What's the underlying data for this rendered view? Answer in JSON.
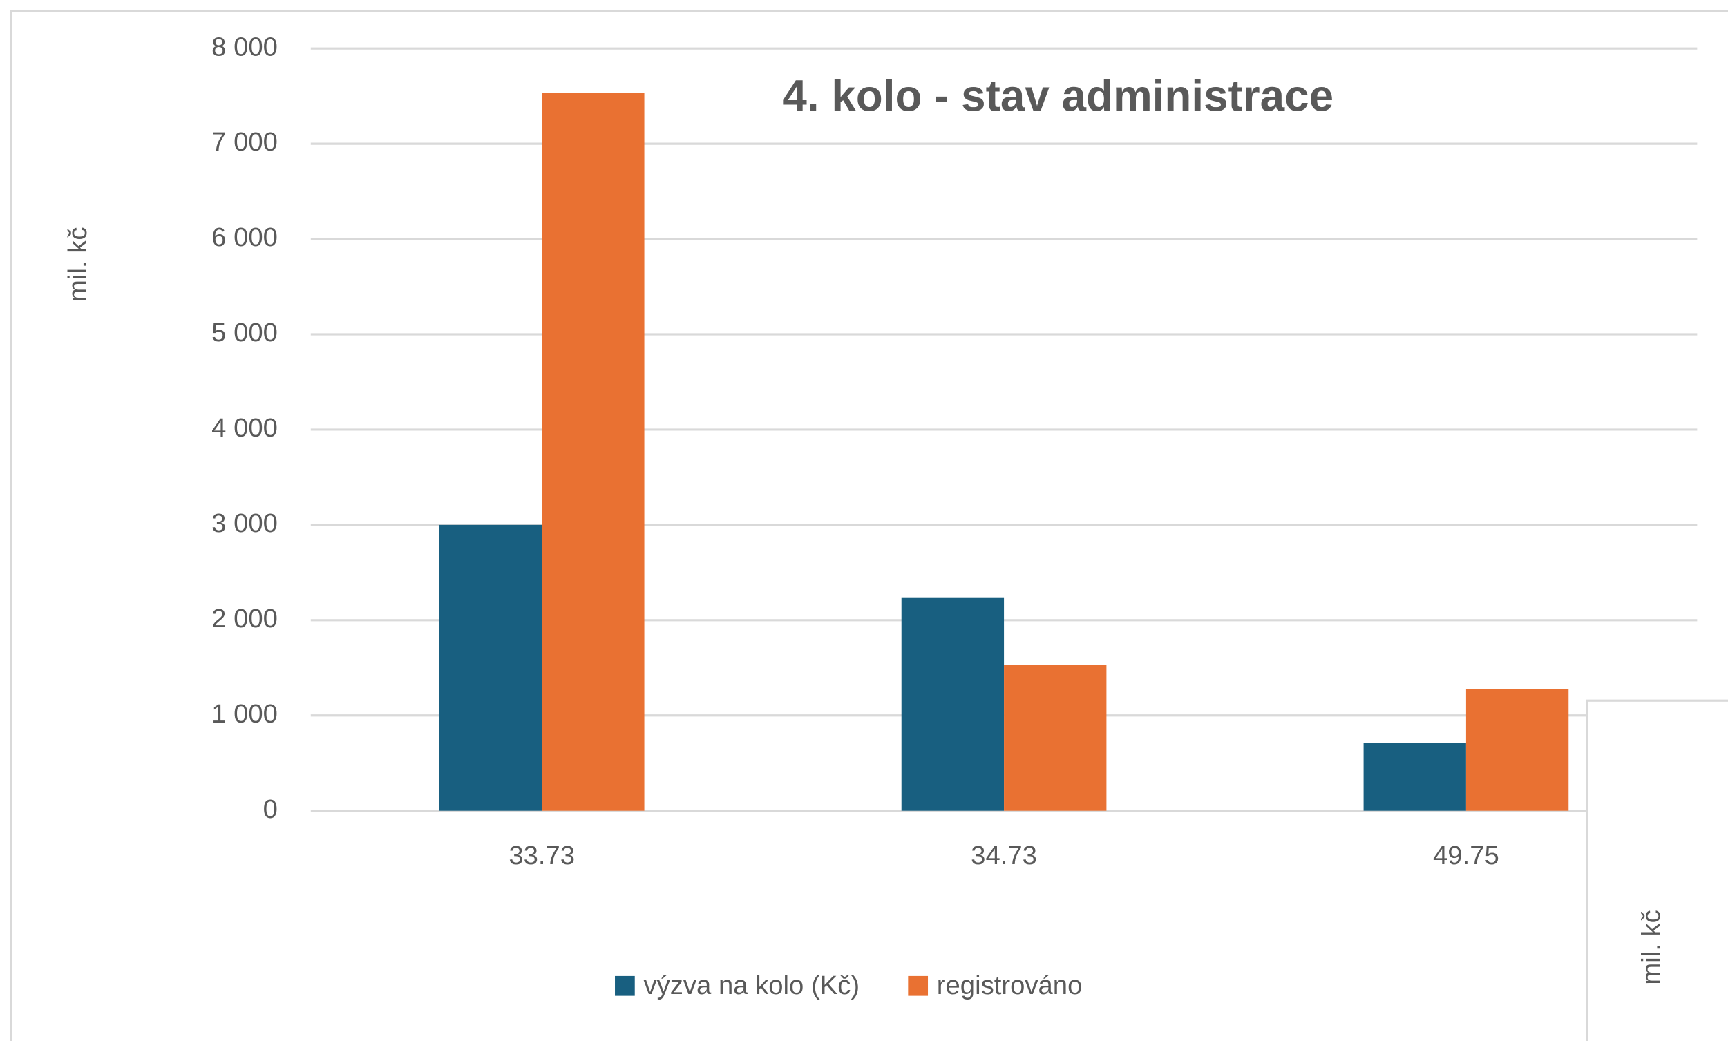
{
  "chart_data": {
    "type": "bar",
    "title": "4. kolo - stav administrace",
    "y_label": "mil. kč",
    "categories": [
      "33.73",
      "34.73",
      "49.75"
    ],
    "series": [
      {
        "name": "výzva na kolo (Kč)",
        "color": "#185f80",
        "values": [
          3000,
          2240,
          710
        ]
      },
      {
        "name": "registrováno",
        "color": "#e97132",
        "values": [
          7530,
          1530,
          1280
        ]
      }
    ],
    "ylim": [
      0,
      8000
    ],
    "yticks": [
      0,
      {
        "value": 1000,
        "label": "1 000"
      },
      {
        "value": 2000,
        "label": "2 000"
      },
      {
        "value": 3000,
        "label": "3 000"
      },
      {
        "value": 4000,
        "label": "4 000"
      },
      {
        "value": 5000,
        "label": "5 000"
      },
      {
        "value": 6000,
        "label": "6 000"
      },
      {
        "value": 7000,
        "label": "7 000"
      },
      {
        "value": 8000,
        "label": "8 000"
      }
    ],
    "grid": true,
    "legend": "bottom"
  },
  "overlay": {
    "y_label": "mil. kč"
  }
}
